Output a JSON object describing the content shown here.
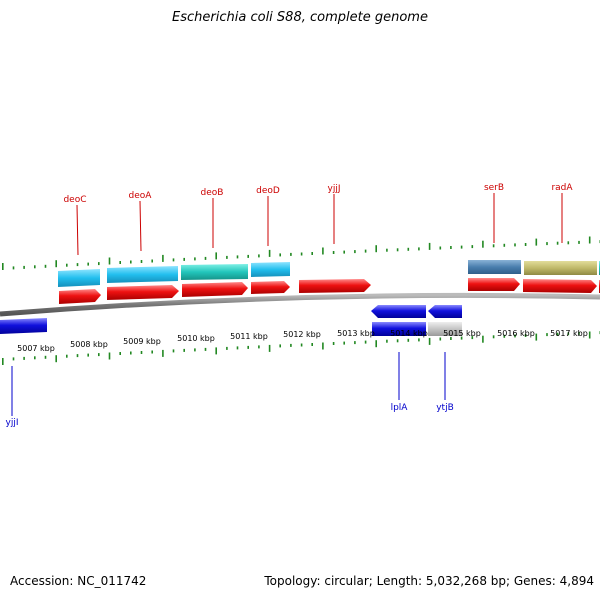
{
  "title": "Escherichia coli S88, complete genome",
  "footer": {
    "accession": "Accession: NC_011742",
    "stats": "Topology: circular; Length: 5,032,268 bp; Genes: 4,894"
  },
  "colors": {
    "forward_gene": "#ee1111",
    "reverse_gene": "#1111dd",
    "forward_label": "#cc0000",
    "reverse_label": "#0000cc",
    "tick": "#228822",
    "backbone": "#808080"
  },
  "ticks": [
    "5007 kbp",
    "5008 kbp",
    "5009 kbp",
    "5010 kbp",
    "5011 kbp",
    "5012 kbp",
    "5013 kbp",
    "5014 kbp",
    "5015 kbp",
    "5016 kbp",
    "5017 kbp"
  ],
  "forward_labels": [
    "deoC",
    "deoA",
    "deoB",
    "deoD",
    "yjjJ",
    "serB",
    "radA"
  ],
  "reverse_labels": [
    "yjjI",
    "lplA",
    "ytjB"
  ]
}
